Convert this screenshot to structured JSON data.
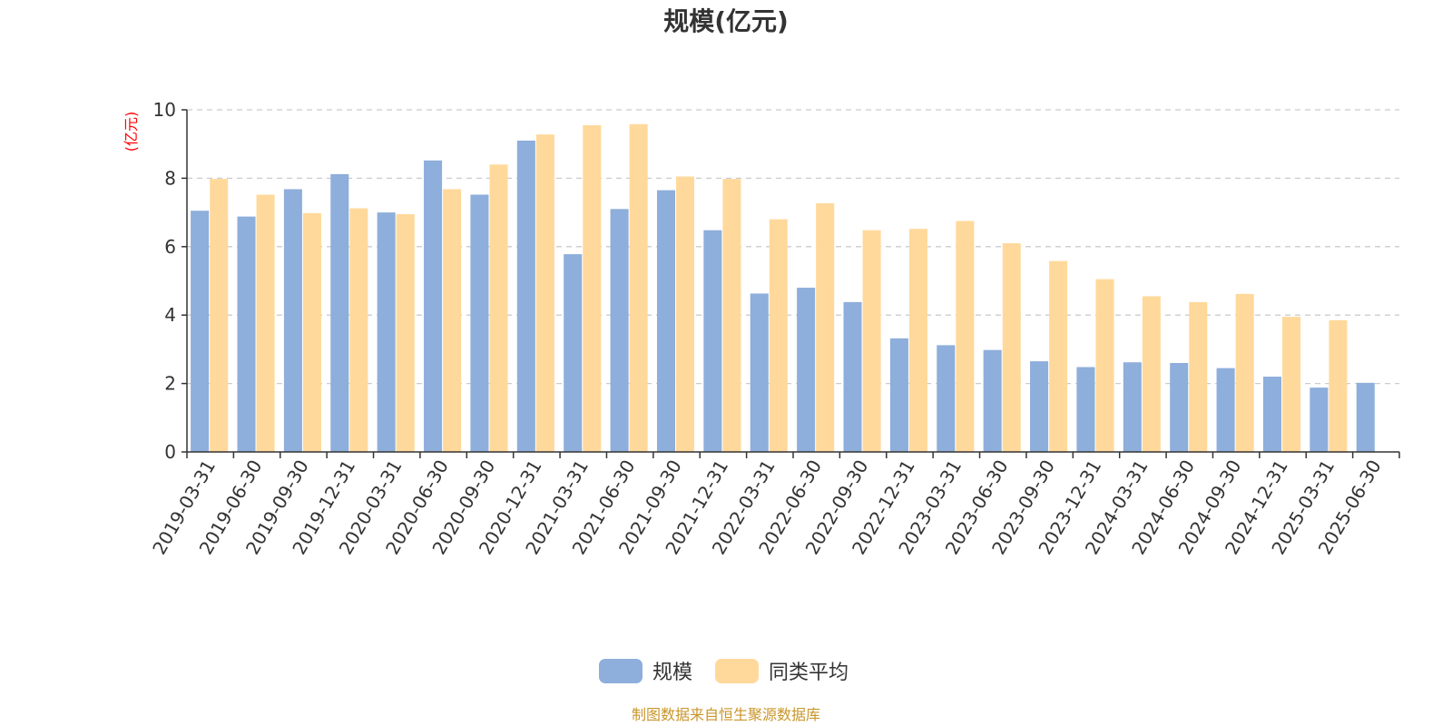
{
  "chart_data": {
    "type": "bar",
    "title": "规模(亿元)",
    "ylabel": "(亿元)",
    "ylim": [
      0,
      10
    ],
    "yticks": [
      0,
      2,
      4,
      6,
      8,
      10
    ],
    "grid": true,
    "legend_position": "bottom-center",
    "categories": [
      "2019-03-31",
      "2019-06-30",
      "2019-09-30",
      "2019-12-31",
      "2020-03-31",
      "2020-06-30",
      "2020-09-30",
      "2020-12-31",
      "2021-03-31",
      "2021-06-30",
      "2021-09-30",
      "2021-12-31",
      "2022-03-31",
      "2022-06-30",
      "2022-09-30",
      "2022-12-31",
      "2023-03-31",
      "2023-06-30",
      "2023-09-30",
      "2023-12-31",
      "2024-03-31",
      "2024-06-30",
      "2024-09-30",
      "2024-12-31",
      "2025-03-31",
      "2025-06-30"
    ],
    "series": [
      {
        "name": "规模",
        "color": "#8eaedb",
        "values": [
          7.05,
          6.88,
          7.68,
          8.12,
          7.0,
          8.52,
          7.52,
          9.1,
          5.78,
          7.1,
          7.65,
          6.48,
          4.63,
          4.8,
          4.38,
          3.32,
          3.12,
          2.98,
          2.65,
          2.48,
          2.62,
          2.6,
          2.45,
          2.2,
          1.88,
          2.02
        ]
      },
      {
        "name": "同类平均",
        "color": "#ffd99b",
        "values": [
          7.98,
          7.52,
          6.98,
          7.12,
          6.95,
          7.68,
          8.4,
          9.28,
          9.55,
          9.58,
          8.05,
          7.98,
          6.8,
          7.27,
          6.48,
          6.52,
          6.75,
          6.1,
          5.58,
          5.05,
          4.55,
          4.38,
          4.62,
          3.95,
          3.85,
          null
        ]
      }
    ],
    "source": "制图数据来自恒生聚源数据库",
    "colors": {
      "axis": "#333333",
      "grid": "#cccccc",
      "ylabel": "#ff0000",
      "source": "#c9962b"
    }
  }
}
